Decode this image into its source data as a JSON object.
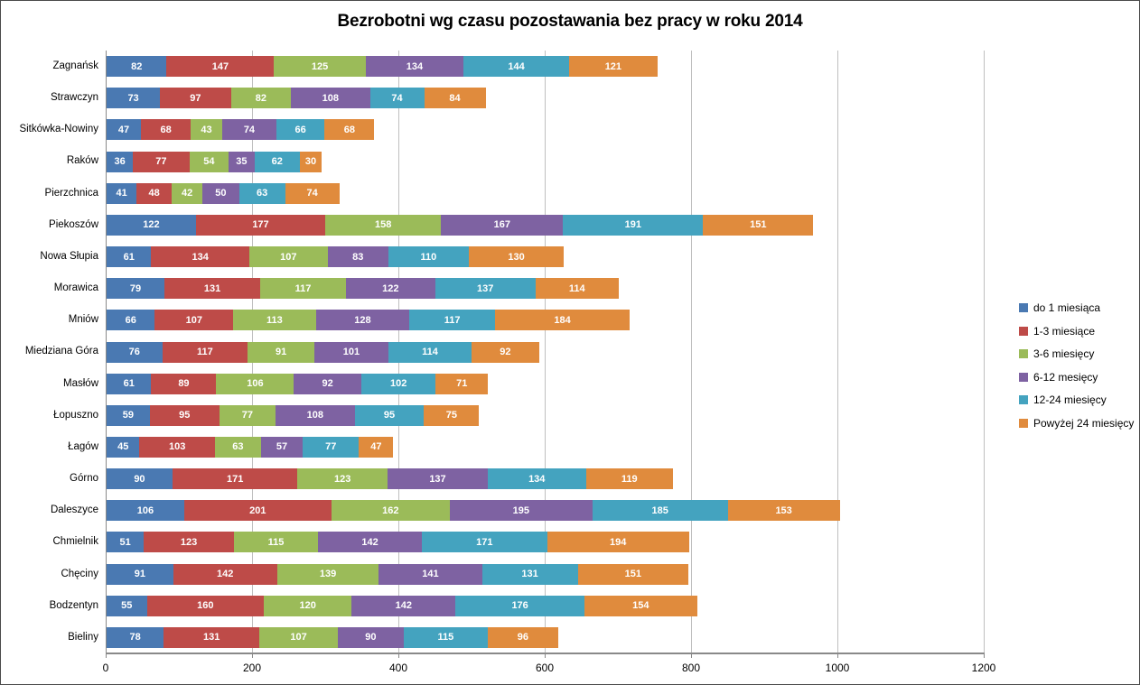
{
  "title": "Bezrobotni wg czasu pozostawania bez pracy w roku 2014",
  "chart_data": {
    "type": "bar",
    "orientation": "horizontal",
    "stacked": true,
    "title": "Bezrobotni wg czasu pozostawania bez pracy w roku 2014",
    "xlabel": "",
    "ylabel": "",
    "xlim": [
      0,
      1200
    ],
    "x_ticks": [
      0,
      200,
      400,
      600,
      800,
      1000,
      1200
    ],
    "grid": true,
    "legend_position": "right",
    "value_labels": "inside-white",
    "grid_color": "#bfbfbf",
    "axis_color": "#898989",
    "categories": [
      "Zagnańsk",
      "Strawczyn",
      "Sitkówka-Nowiny",
      "Raków",
      "Pierzchnica",
      "Piekoszów",
      "Nowa Słupia",
      "Morawica",
      "Mniów",
      "Miedziana Góra",
      "Masłów",
      "Łopuszno",
      "Łagów",
      "Górno",
      "Daleszyce",
      "Chmielnik",
      "Chęciny",
      "Bodzentyn",
      "Bieliny"
    ],
    "series": [
      {
        "name": "do 1 miesiąca",
        "color": "#4A79B2",
        "values": [
          82,
          73,
          47,
          36,
          41,
          122,
          61,
          79,
          66,
          76,
          61,
          59,
          45,
          90,
          106,
          51,
          91,
          55,
          78
        ]
      },
      {
        "name": "1-3 miesiące",
        "color": "#BE4B48",
        "values": [
          147,
          97,
          68,
          77,
          48,
          177,
          134,
          131,
          107,
          117,
          89,
          95,
          103,
          171,
          201,
          123,
          142,
          160,
          131
        ]
      },
      {
        "name": "3-6 miesięcy",
        "color": "#9BBB59",
        "values": [
          125,
          82,
          43,
          54,
          42,
          158,
          107,
          117,
          113,
          91,
          106,
          77,
          63,
          123,
          162,
          115,
          139,
          120,
          107
        ]
      },
      {
        "name": "6-12 mesięcy",
        "color": "#7E62A2",
        "values": [
          134,
          108,
          74,
          35,
          50,
          167,
          83,
          122,
          128,
          101,
          92,
          108,
          57,
          137,
          195,
          142,
          141,
          142,
          90
        ]
      },
      {
        "name": "12-24 miesięcy",
        "color": "#44A3BF",
        "values": [
          144,
          74,
          66,
          62,
          63,
          191,
          110,
          137,
          117,
          114,
          102,
          95,
          77,
          134,
          185,
          171,
          131,
          176,
          115
        ]
      },
      {
        "name": "Powyżej 24 miesięcy",
        "color": "#E08B3D",
        "values": [
          121,
          84,
          68,
          30,
          74,
          151,
          130,
          114,
          184,
          92,
          71,
          75,
          47,
          119,
          153,
          194,
          151,
          154,
          96
        ]
      }
    ]
  }
}
